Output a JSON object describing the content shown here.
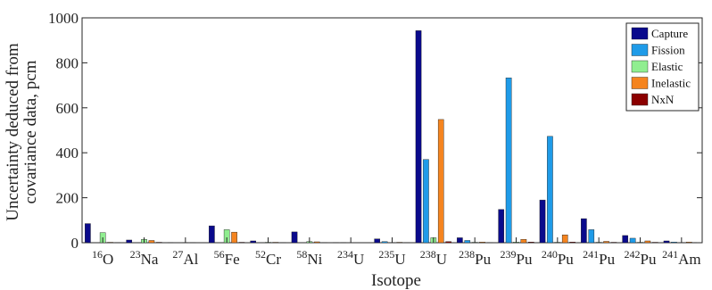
{
  "chart_data": {
    "type": "bar",
    "xlabel": "Isotope",
    "ylabel_line1": "Uncertainty deduced from",
    "ylabel_line2": "covariance data, pcm",
    "ylim": [
      0,
      1000
    ],
    "yticks": [
      0,
      200,
      400,
      600,
      800,
      1000
    ],
    "grid": false,
    "legend_position": "top-right",
    "categories": [
      {
        "mass": "16",
        "element": "O"
      },
      {
        "mass": "23",
        "element": "Na"
      },
      {
        "mass": "27",
        "element": "Al"
      },
      {
        "mass": "56",
        "element": "Fe"
      },
      {
        "mass": "52",
        "element": "Cr"
      },
      {
        "mass": "58",
        "element": "Ni"
      },
      {
        "mass": "234",
        "element": "U"
      },
      {
        "mass": "235",
        "element": "U"
      },
      {
        "mass": "238",
        "element": "U"
      },
      {
        "mass": "238",
        "element": "Pu"
      },
      {
        "mass": "239",
        "element": "Pu"
      },
      {
        "mass": "240",
        "element": "Pu"
      },
      {
        "mass": "241",
        "element": "Pu"
      },
      {
        "mass": "242",
        "element": "Pu"
      },
      {
        "mass": "241",
        "element": "Am"
      }
    ],
    "series": [
      {
        "name": "Capture",
        "color": "#0a0a8c",
        "values": [
          85,
          12,
          1,
          75,
          8,
          48,
          1,
          17,
          943,
          22,
          148,
          190,
          107,
          32,
          8
        ]
      },
      {
        "name": "Fission",
        "color": "#1f9be8",
        "values": [
          0,
          0,
          0,
          0,
          0,
          0,
          1,
          5,
          370,
          10,
          733,
          473,
          58,
          20,
          3
        ]
      },
      {
        "name": "Elastic",
        "color": "#90ee90",
        "values": [
          45,
          15,
          1,
          58,
          2,
          5,
          0,
          1,
          22,
          2,
          3,
          2,
          2,
          2,
          1
        ]
      },
      {
        "name": "Inelastic",
        "color": "#f5841f",
        "values": [
          2,
          10,
          1,
          47,
          2,
          4,
          0,
          2,
          548,
          3,
          15,
          35,
          6,
          8,
          3
        ]
      },
      {
        "name": "NxN",
        "color": "#8b0000",
        "values": [
          1,
          2,
          0,
          2,
          1,
          1,
          0,
          1,
          5,
          1,
          3,
          3,
          2,
          2,
          1
        ]
      }
    ]
  }
}
